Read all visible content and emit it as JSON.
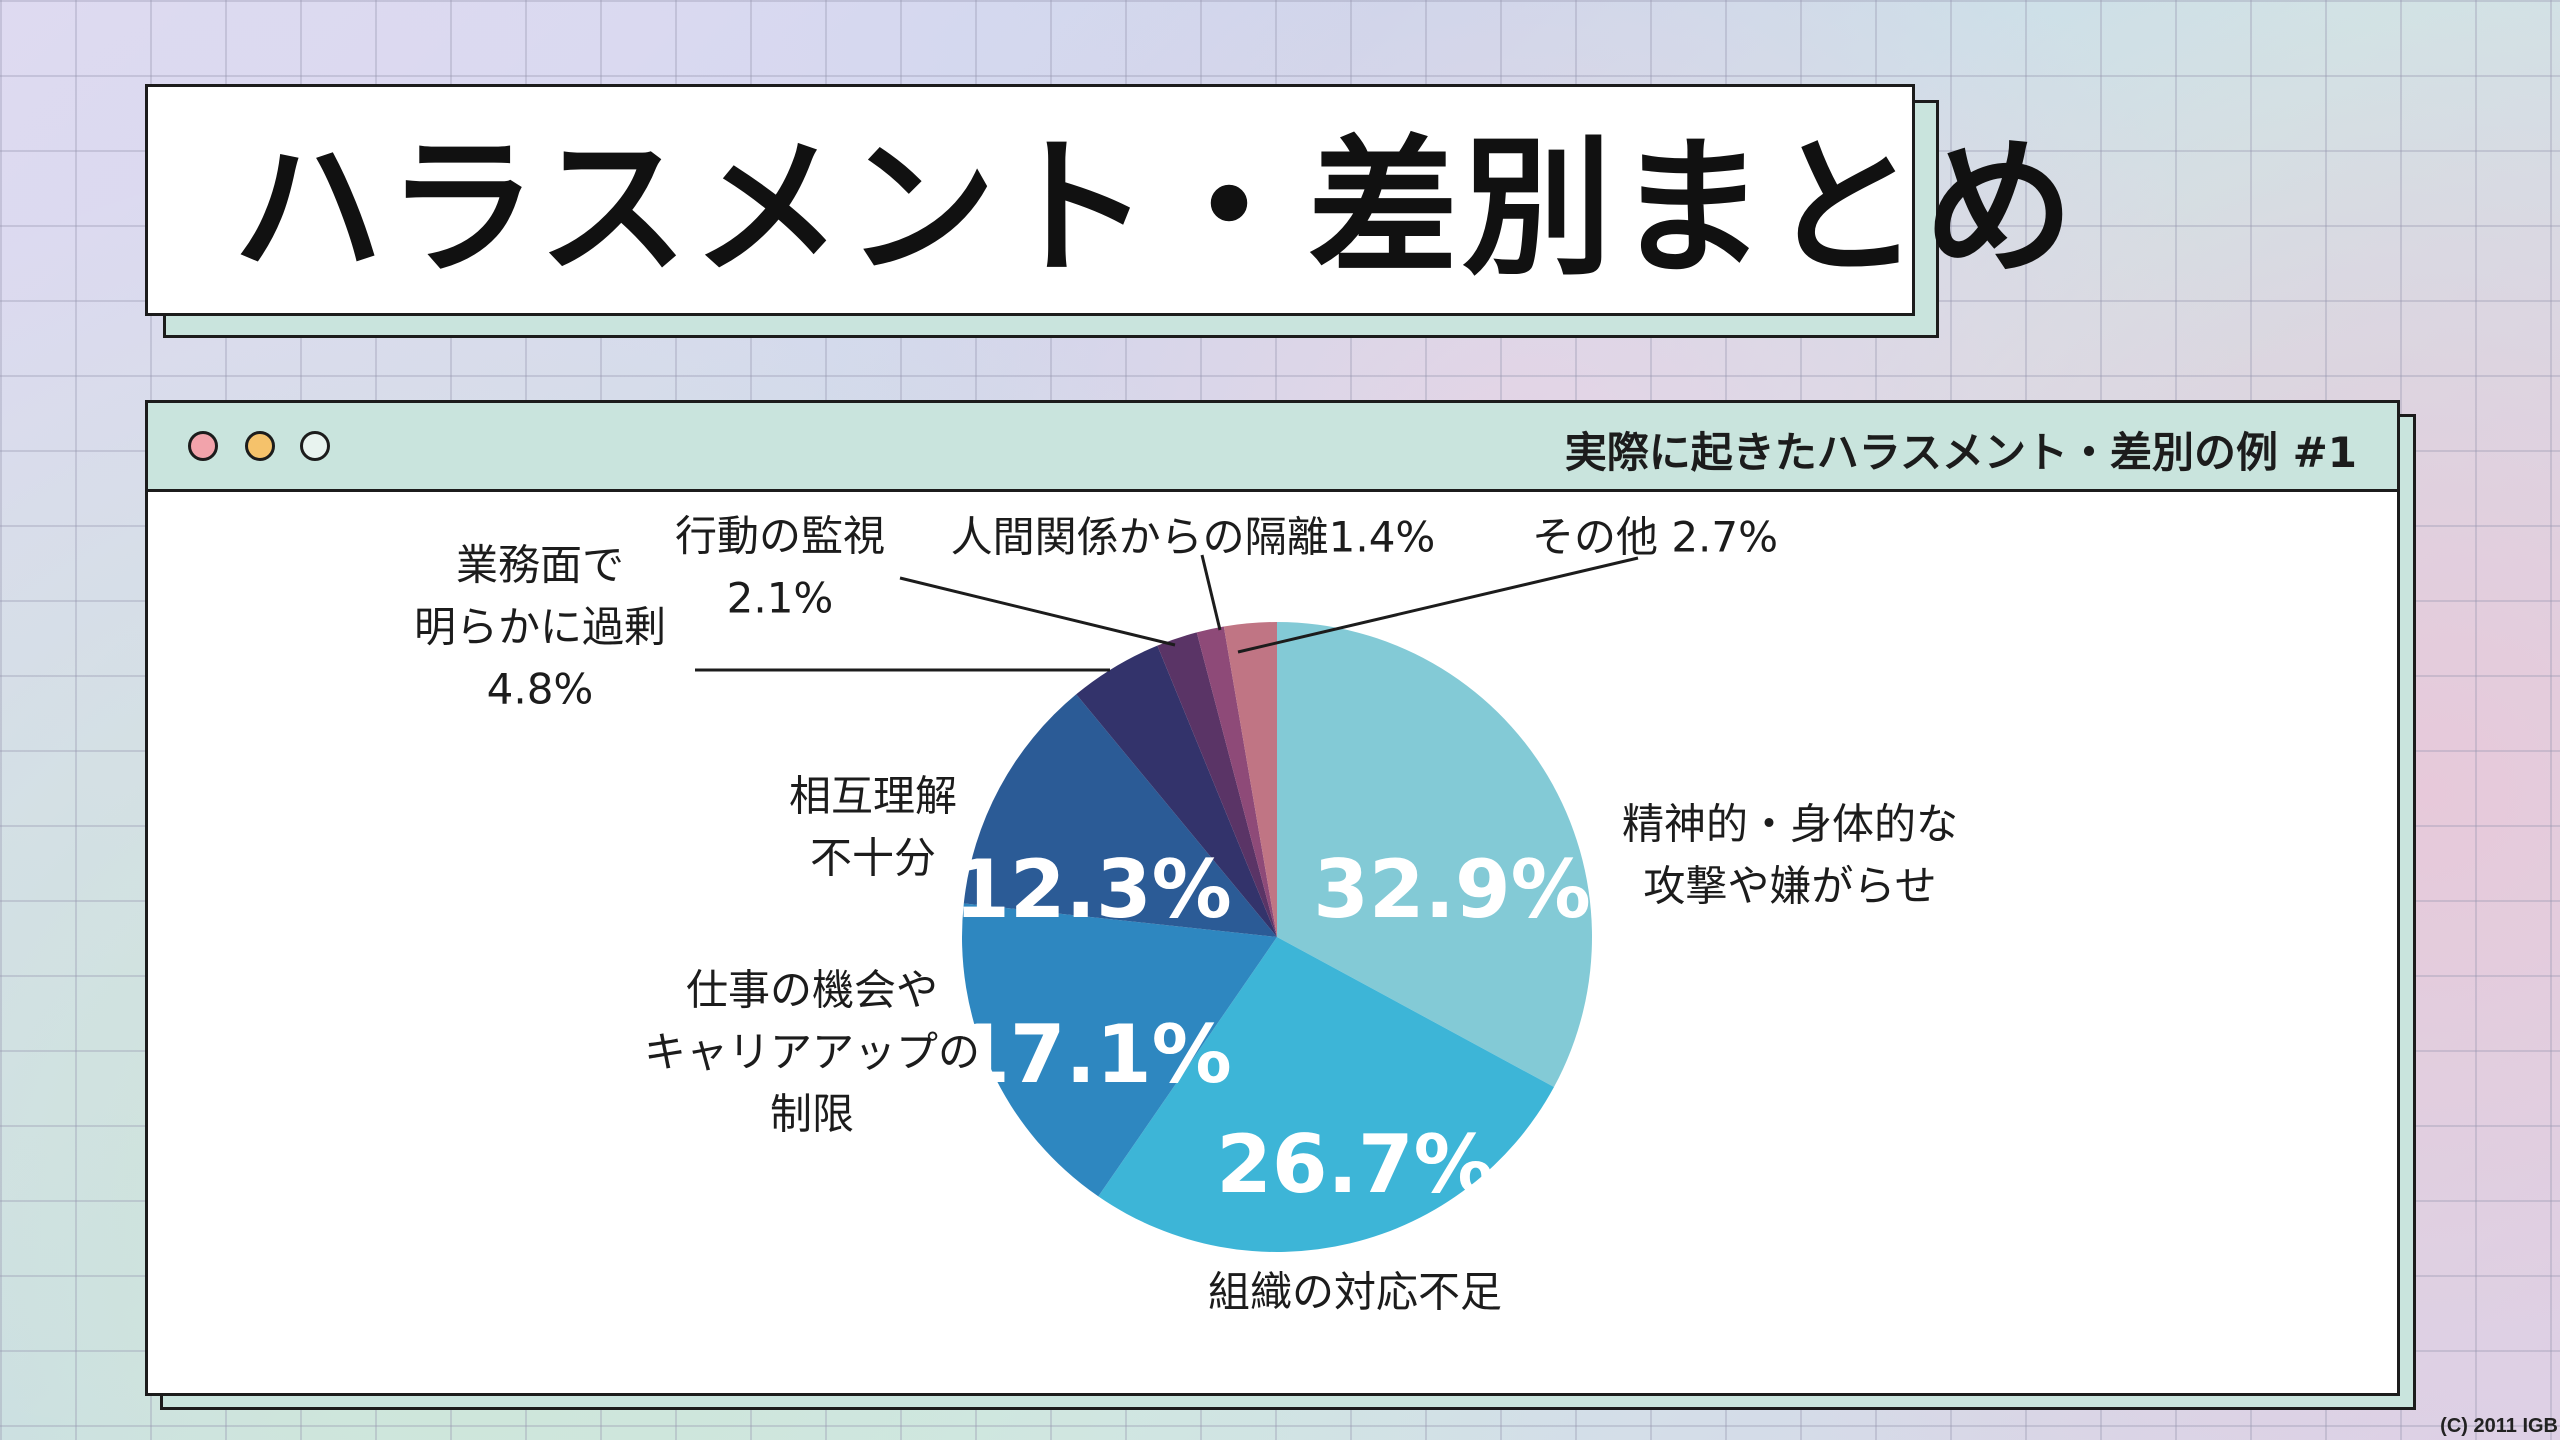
{
  "title": "ハラスメント・差別まとめ",
  "window": {
    "title": "実際に起きたハラスメント・差別の例 #1"
  },
  "chart_data": {
    "type": "pie",
    "slices": [
      {
        "label": [
          "精神的・身体的な",
          "攻撃や嫌がらせ"
        ],
        "value": 32.9,
        "display": "32.9%",
        "color": "#83cad6"
      },
      {
        "label": [
          "組織の対応不足"
        ],
        "value": 26.7,
        "display": "26.7%",
        "color": "#3db5d7"
      },
      {
        "label": [
          "仕事の機会や",
          "キャリアアップの",
          "制限"
        ],
        "value": 17.1,
        "display": "17.1%",
        "color": "#2e87c0"
      },
      {
        "label": [
          "相互理解",
          "不十分"
        ],
        "value": 12.3,
        "display": "12.3%",
        "color": "#2b5b96"
      },
      {
        "label": [
          "業務面で",
          "明らかに過剰",
          "4.8%"
        ],
        "value": 4.8,
        "display": "",
        "color": "#33336b"
      },
      {
        "label": [
          "行動の監視",
          "2.1%"
        ],
        "value": 2.1,
        "display": "",
        "color": "#5a3466"
      },
      {
        "label": [
          "人間関係からの隔離1.4%"
        ],
        "value": 1.4,
        "display": "",
        "color": "#8e4a78"
      },
      {
        "label": [
          "その他 2.7%"
        ],
        "value": 2.7,
        "display": "",
        "color": "#c07584"
      }
    ]
  },
  "copyright": "(C) 2011 IGB"
}
